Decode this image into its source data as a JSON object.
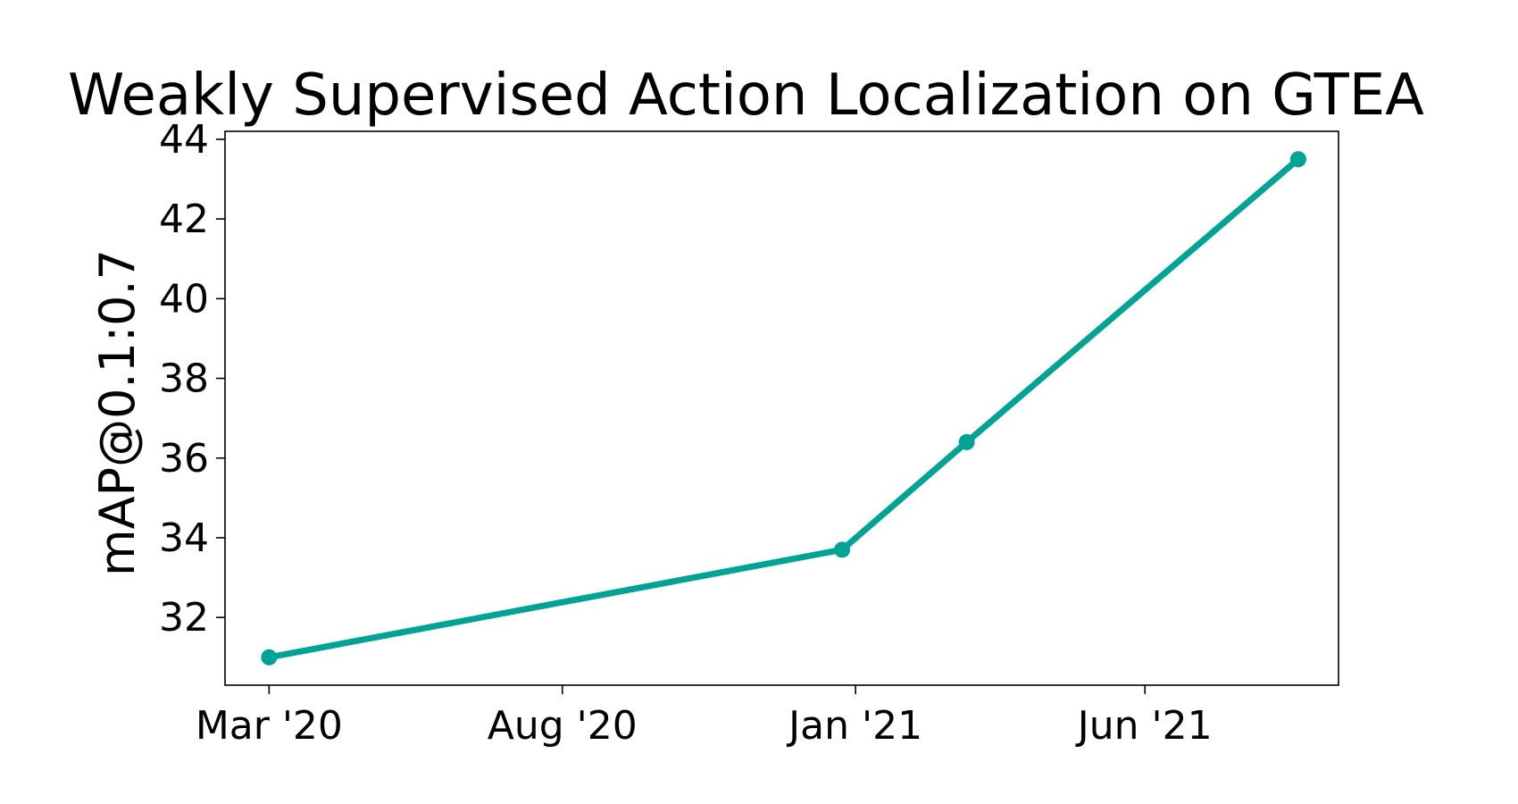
{
  "chart_data": {
    "type": "line",
    "title": "Weakly Supervised Action Localization on GTEA",
    "xlabel": "",
    "ylabel": "mAP@0.1:0.7",
    "x_ticks": [
      "Mar '20",
      "Aug '20",
      "Jan '21",
      "Jun '21"
    ],
    "y_ticks": [
      32,
      34,
      36,
      38,
      40,
      42,
      44
    ],
    "xlim": [
      "2020-02-07",
      "2021-09-10"
    ],
    "ylim": [
      30.3,
      44.2
    ],
    "grid": false,
    "color": "#00a394",
    "series": [
      {
        "x": [
          "2020-03-01",
          "2020-12-25",
          "2021-02-28",
          "2021-08-20"
        ],
        "y": [
          31.0,
          33.7,
          36.4,
          43.5
        ]
      }
    ]
  }
}
